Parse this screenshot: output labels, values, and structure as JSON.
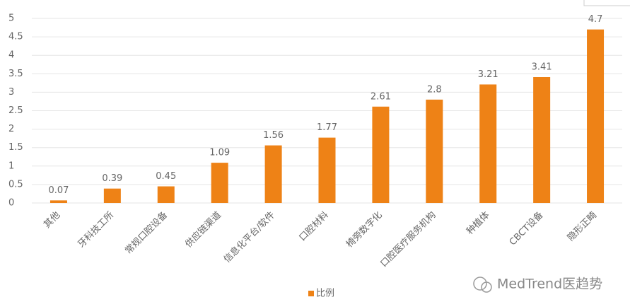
{
  "chart_data": {
    "type": "bar",
    "categories": [
      "其他",
      "牙科技工所",
      "常规口腔设备",
      "供应链渠道",
      "信息化平台/软件",
      "口腔材料",
      "椅旁数字化",
      "口腔医疗服务机构",
      "种植体",
      "CBCT设备",
      "隐形正畸"
    ],
    "series": [
      {
        "name": "比例",
        "color": "#ee8216",
        "values": [
          0.07,
          0.39,
          0.45,
          1.09,
          1.56,
          1.77,
          2.61,
          2.8,
          3.21,
          3.41,
          4.7
        ]
      }
    ],
    "ylim": [
      0,
      5
    ],
    "yticks": [
      0,
      0.5,
      1,
      1.5,
      2,
      2.5,
      3,
      3.5,
      4,
      4.5,
      5
    ],
    "grid": true,
    "legend": "bottom",
    "watermark": "MedTrend医趋势"
  }
}
